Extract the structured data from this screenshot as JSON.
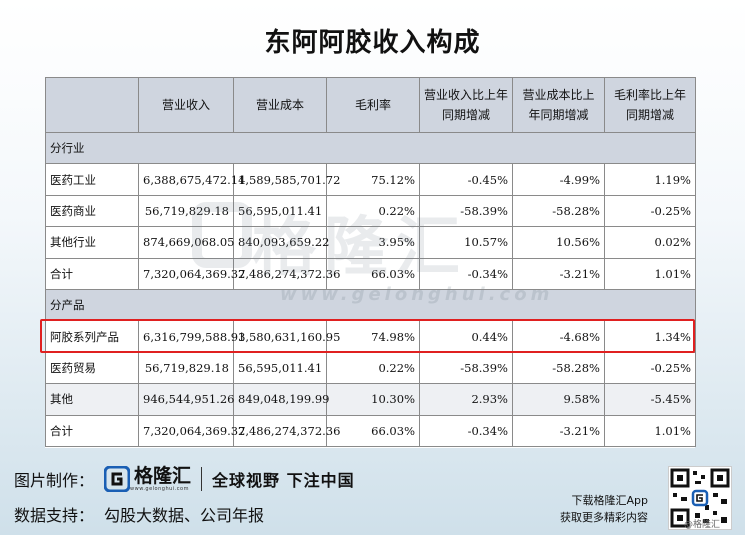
{
  "title": "东阿阿胶收入构成",
  "table": {
    "headers": [
      "",
      "营业收入",
      "营业成本",
      "毛利率",
      "营业收入比上年同期增减",
      "营业成本比上年同期增减",
      "毛利率比上年同期增减"
    ],
    "rows": [
      {
        "type": "section",
        "label": "分行业"
      },
      {
        "type": "data",
        "cells": [
          "医药工业",
          "6,388,675,472.14",
          "1,589,585,701.72",
          "75.12%",
          "-0.45%",
          "-4.99%",
          "1.19%"
        ]
      },
      {
        "type": "data",
        "cells": [
          "医药商业",
          "56,719,829.18",
          "56,595,011.41",
          "0.22%",
          "-58.39%",
          "-58.28%",
          "-0.25%"
        ]
      },
      {
        "type": "data",
        "cells": [
          "其他行业",
          "874,669,068.05",
          "840,093,659.22",
          "3.95%",
          "10.57%",
          "10.56%",
          "0.02%"
        ]
      },
      {
        "type": "data",
        "cells": [
          "合计",
          "7,320,064,369.37",
          "2,486,274,372.36",
          "66.03%",
          "-0.34%",
          "-3.21%",
          "1.01%"
        ]
      },
      {
        "type": "section",
        "label": "分产品"
      },
      {
        "type": "data",
        "cells": [
          "阿胶系列产品",
          "6,316,799,588.93",
          "1,580,631,160.95",
          "74.98%",
          "0.44%",
          "-4.68%",
          "1.34%"
        ]
      },
      {
        "type": "data",
        "cells": [
          "医药贸易",
          "56,719,829.18",
          "56,595,011.41",
          "0.22%",
          "-58.39%",
          "-58.28%",
          "-0.25%"
        ]
      },
      {
        "type": "data",
        "cells": [
          "其他",
          "946,544,951.26",
          "849,048,199.99",
          "10.30%",
          "2.93%",
          "9.58%",
          "-5.45%"
        ]
      },
      {
        "type": "data",
        "cells": [
          "合计",
          "7,320,064,369.37",
          "2,486,274,372.36",
          "66.03%",
          "-0.34%",
          "-3.21%",
          "1.01%"
        ]
      }
    ]
  },
  "watermark": {
    "name": "格隆汇",
    "url": "www.gelonghui.com"
  },
  "footer": {
    "made_by_label": "图片制作：",
    "logo_name": "格隆汇",
    "logo_url": "www.gelonghui.com",
    "slogan": "全球视野 下注中国",
    "source_label": "数据支持：",
    "source": "勾股大数据、公司年报",
    "download_line1": "下载格隆汇App",
    "download_line2": "获取更多精彩内容",
    "corner_text": "@格隆汇"
  },
  "colors": {
    "header_bg": "#cfd5df",
    "highlight": "#e02020",
    "brand_blue": "#1a5fb4"
  }
}
